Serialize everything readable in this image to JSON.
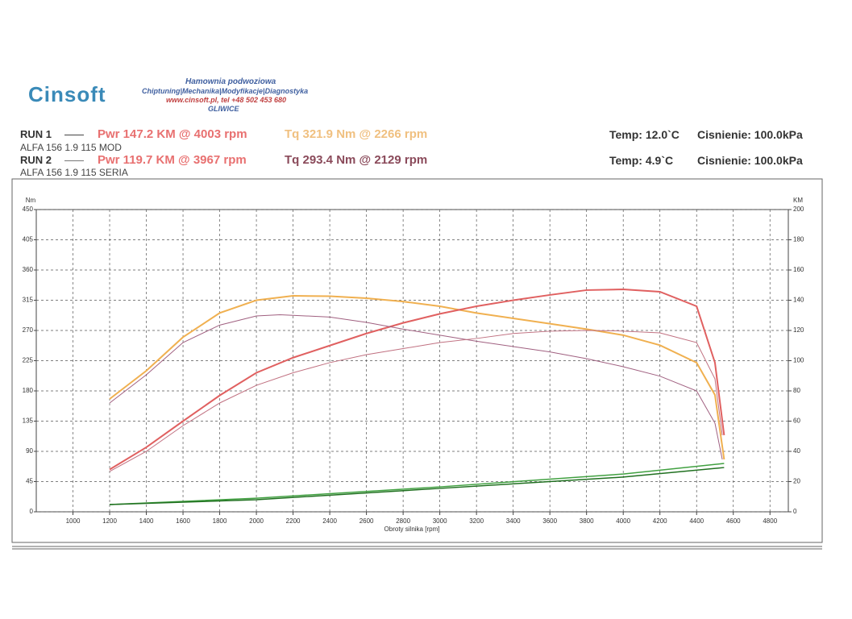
{
  "header": {
    "logo": "Cinsoft",
    "line1": "Hamownia podwoziowa",
    "line2": "Chiptuning|Mechanika|Modyfikacje|Diagnostyka",
    "line3": "www.cinsoft.pl, tel +48 502 453 680",
    "line4": "GLIWICE"
  },
  "runs": [
    {
      "label": "RUN 1",
      "pwr": "Pwr  147.2 KM @ 4003 rpm",
      "tq": "Tq 321.9 Nm @ 2266 rpm",
      "car": "ALFA 156 1.9 115 MOD",
      "temp": "Temp: 12.0`C",
      "pressure": "Cisnienie: 100.0kPa"
    },
    {
      "label": "RUN 2",
      "pwr": "Pwr  119.7 KM @ 3967 rpm",
      "tq": "Tq 293.4 Nm @ 2129 rpm",
      "car": "ALFA 156 1.9 115 SERIA",
      "temp": "Temp: 4.9`C",
      "pressure": "Cisnienie: 100.0kPa"
    }
  ],
  "chart_data": {
    "type": "line",
    "y_label": "Nm",
    "y2_label": "KM",
    "x_label": "Obroty silnika [rpm]",
    "xlim": [
      800,
      4900
    ],
    "xticks": [
      1000,
      1200,
      1400,
      1600,
      1800,
      2000,
      2200,
      2400,
      2600,
      2800,
      3000,
      3200,
      3400,
      3600,
      3800,
      4000,
      4200,
      4400,
      4600,
      4800
    ],
    "ylim": [
      0,
      450
    ],
    "yticks": [
      0,
      45,
      90,
      135,
      180,
      225,
      270,
      315,
      360,
      405,
      450
    ],
    "y2lim": [
      0,
      200
    ],
    "y2ticks": [
      0,
      20,
      40,
      60,
      80,
      100,
      120,
      140,
      160,
      180,
      200
    ],
    "grid": true,
    "series": [
      {
        "color": "#f0b050",
        "width": 2,
        "axis": "y",
        "x": [
          1200,
          1400,
          1600,
          1800,
          2000,
          2200,
          2400,
          2600,
          2800,
          3000,
          3200,
          3400,
          3600,
          3800,
          4000,
          4200,
          4400,
          4500,
          4550
        ],
        "values": [
          168,
          210,
          260,
          296,
          315,
          321.6,
          321,
          318,
          313,
          306,
          296,
          288,
          280,
          272,
          263,
          248,
          222,
          174,
          78
        ]
      },
      {
        "color": "#e06060",
        "width": 2,
        "axis": "y2",
        "x": [
          1200,
          1400,
          1600,
          1800,
          2000,
          2200,
          2400,
          2600,
          2800,
          3000,
          3200,
          3400,
          3600,
          3800,
          4000,
          4200,
          4400,
          4500,
          4550
        ],
        "values": [
          28,
          42.7,
          60,
          77,
          92,
          102,
          110,
          118,
          125,
          131,
          136,
          140,
          143.5,
          146.7,
          147.2,
          145.6,
          136,
          98.7,
          50.7
        ]
      },
      {
        "color": "#a06080",
        "width": 1,
        "axis": "y",
        "x": [
          1200,
          1400,
          1600,
          1800,
          2000,
          2129,
          2400,
          2600,
          2800,
          3000,
          3200,
          3400,
          3600,
          3800,
          4000,
          4200,
          4400,
          4500,
          4540
        ],
        "values": [
          162,
          204,
          252,
          278,
          291.6,
          293.4,
          290,
          282,
          272,
          263,
          254,
          246,
          238,
          228,
          216,
          202,
          180,
          132,
          78
        ]
      },
      {
        "color": "#c07080",
        "width": 1,
        "axis": "y2",
        "x": [
          1200,
          1400,
          1600,
          1800,
          2000,
          2200,
          2400,
          2600,
          2800,
          3000,
          3200,
          3400,
          3600,
          3800,
          3967,
          4200,
          4400,
          4500,
          4540
        ],
        "values": [
          26.7,
          40,
          57,
          72,
          83.7,
          92,
          98.7,
          104,
          108,
          112,
          114.7,
          118,
          119.5,
          120,
          119.7,
          118.4,
          112,
          88,
          50.7
        ]
      },
      {
        "color": "#40a040",
        "width": 1.5,
        "axis": "y2",
        "x": [
          1200,
          2000,
          3000,
          4000,
          4550
        ],
        "values": [
          4.8,
          9,
          16.5,
          25,
          32
        ]
      },
      {
        "color": "#207020",
        "width": 1.5,
        "axis": "y2",
        "x": [
          1200,
          2000,
          3000,
          4000,
          4550
        ],
        "values": [
          4.8,
          8,
          15.5,
          23,
          29.3
        ]
      }
    ]
  }
}
